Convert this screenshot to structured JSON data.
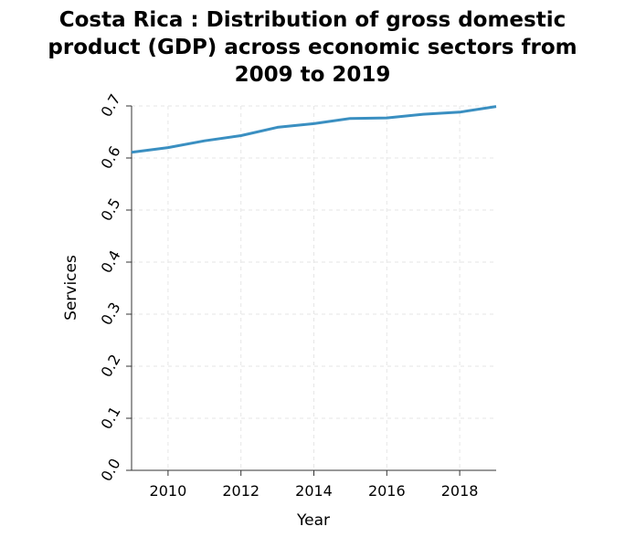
{
  "chart_data": {
    "type": "line",
    "title_lines": [
      "Costa Rica : Distribution of gross domestic",
      "product (GDP) across economic sectors from",
      "2009 to 2019"
    ],
    "xlabel": "Year",
    "ylabel": "Services",
    "xlim": [
      2009,
      2019
    ],
    "ylim": [
      0.0,
      0.7
    ],
    "x_ticks": [
      2010,
      2012,
      2014,
      2016,
      2018
    ],
    "y_ticks": [
      "0.0",
      "0.1",
      "0.2",
      "0.3",
      "0.4",
      "0.5",
      "0.6",
      "0.7"
    ],
    "grid": true,
    "series": [
      {
        "color": "#3a8fc1",
        "x": [
          2009,
          2010,
          2011,
          2012,
          2013,
          2014,
          2015,
          2016,
          2017,
          2018,
          2019
        ],
        "y": [
          0.611,
          0.62,
          0.633,
          0.643,
          0.659,
          0.666,
          0.676,
          0.677,
          0.684,
          0.688,
          0.699
        ]
      }
    ]
  }
}
